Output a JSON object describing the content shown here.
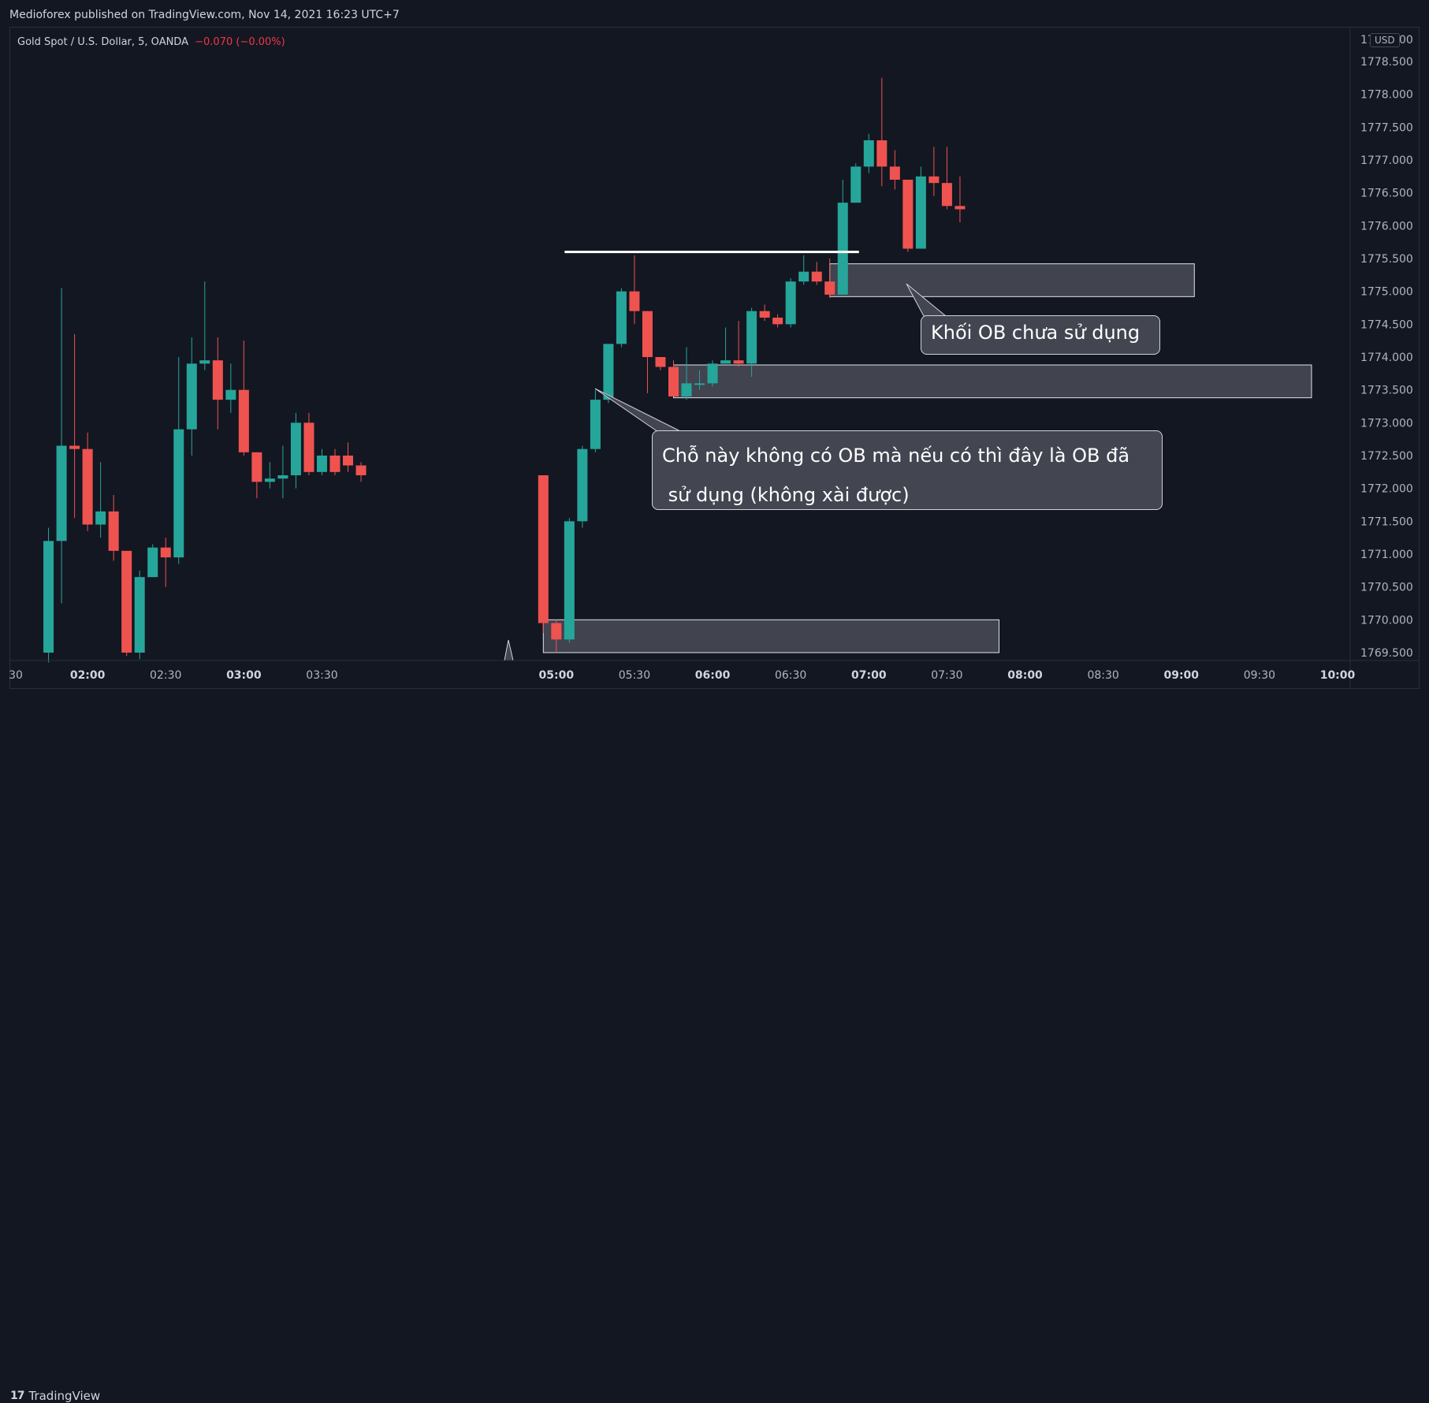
{
  "header": {
    "publisher": "Medioforex published on TradingView.com, Nov 14, 2021 16:23 UTC+7"
  },
  "symbol": {
    "name": "Gold Spot / U.S. Dollar, 5, OANDA",
    "change": "−0.070 (−0.00%)"
  },
  "price_axis": {
    "currency": "USD"
  },
  "annotations": {
    "callout_unused_ob": "Khối OB chưa sử dụng",
    "callout_used_ob_line1": "Chỗ này không có OB mà nếu có thì đây là OB đã",
    "callout_used_ob_line2": " sử dụng (không xài được)"
  },
  "footer": {
    "logo_text": "TradingView",
    "logo_icon": "tradingview-logo-icon"
  },
  "colors": {
    "background": "#131722",
    "up": "#26a69a",
    "down": "#ef5350",
    "grid": "#2a2e39",
    "text": "#d1d4dc",
    "zone_fill": "#434651"
  },
  "chart_data": {
    "type": "candlestick",
    "interval": "5",
    "ylim": [
      1769.35,
      1778.95
    ],
    "y_ticks": [
      1769.5,
      1770.0,
      1770.5,
      1771.0,
      1771.5,
      1772.0,
      1772.5,
      1773.0,
      1773.5,
      1774.0,
      1774.5,
      1775.0,
      1775.5,
      1776.0,
      1776.5,
      1777.0,
      1777.5,
      1778.0,
      1778.5
    ],
    "y_tick_labels": [
      "1769.500",
      "1770.000",
      "1770.500",
      "1771.000",
      "1771.500",
      "1772.000",
      "1772.500",
      "1773.000",
      "1773.500",
      "1774.000",
      "1774.500",
      "1775.000",
      "1775.500",
      "1776.000",
      "1776.500",
      "1777.000",
      "1777.500",
      "1778.000",
      "1778.500"
    ],
    "top_tick_label": "1779.000",
    "x_start": "01:30",
    "x_end": "10:00",
    "x_ticks": [
      {
        "t": "01:30",
        "label": "30",
        "bold": false
      },
      {
        "t": "02:00",
        "label": "02:00",
        "bold": true
      },
      {
        "t": "02:30",
        "label": "02:30",
        "bold": false
      },
      {
        "t": "03:00",
        "label": "03:00",
        "bold": true
      },
      {
        "t": "03:30",
        "label": "03:30",
        "bold": false
      },
      {
        "t": "05:00",
        "label": "05:00",
        "bold": true
      },
      {
        "t": "05:30",
        "label": "05:30",
        "bold": false
      },
      {
        "t": "06:00",
        "label": "06:00",
        "bold": true
      },
      {
        "t": "06:30",
        "label": "06:30",
        "bold": false
      },
      {
        "t": "07:00",
        "label": "07:00",
        "bold": true
      },
      {
        "t": "07:30",
        "label": "07:30",
        "bold": false
      },
      {
        "t": "08:00",
        "label": "08:00",
        "bold": true
      },
      {
        "t": "08:30",
        "label": "08:30",
        "bold": false
      },
      {
        "t": "09:00",
        "label": "09:00",
        "bold": true
      },
      {
        "t": "09:30",
        "label": "09:30",
        "bold": false
      },
      {
        "t": "10:00",
        "label": "10:00",
        "bold": true
      }
    ],
    "candles": [
      {
        "t": "01:45",
        "o": 1769.5,
        "h": 1771.4,
        "l": 1769.35,
        "c": 1771.2
      },
      {
        "t": "01:50",
        "o": 1771.2,
        "h": 1775.05,
        "l": 1770.25,
        "c": 1772.65
      },
      {
        "t": "01:55",
        "o": 1772.65,
        "h": 1774.35,
        "l": 1771.55,
        "c": 1772.6
      },
      {
        "t": "02:00",
        "o": 1772.6,
        "h": 1772.85,
        "l": 1771.35,
        "c": 1771.45
      },
      {
        "t": "02:05",
        "o": 1771.45,
        "h": 1772.4,
        "l": 1771.25,
        "c": 1771.65
      },
      {
        "t": "02:10",
        "o": 1771.65,
        "h": 1771.9,
        "l": 1770.9,
        "c": 1771.05
      },
      {
        "t": "02:15",
        "o": 1771.05,
        "h": 1771.05,
        "l": 1769.45,
        "c": 1769.5
      },
      {
        "t": "02:20",
        "o": 1769.5,
        "h": 1770.75,
        "l": 1769.4,
        "c": 1770.65
      },
      {
        "t": "02:25",
        "o": 1770.65,
        "h": 1771.15,
        "l": 1770.65,
        "c": 1771.1
      },
      {
        "t": "02:30",
        "o": 1771.1,
        "h": 1771.25,
        "l": 1770.5,
        "c": 1770.95
      },
      {
        "t": "02:35",
        "o": 1770.95,
        "h": 1774.0,
        "l": 1770.85,
        "c": 1772.9
      },
      {
        "t": "02:40",
        "o": 1772.9,
        "h": 1774.3,
        "l": 1772.5,
        "c": 1773.9
      },
      {
        "t": "02:45",
        "o": 1773.9,
        "h": 1775.15,
        "l": 1773.8,
        "c": 1773.95
      },
      {
        "t": "02:50",
        "o": 1773.95,
        "h": 1774.3,
        "l": 1772.9,
        "c": 1773.35
      },
      {
        "t": "02:55",
        "o": 1773.35,
        "h": 1773.9,
        "l": 1773.15,
        "c": 1773.5
      },
      {
        "t": "03:00",
        "o": 1773.5,
        "h": 1774.25,
        "l": 1772.5,
        "c": 1772.55
      },
      {
        "t": "03:05",
        "o": 1772.55,
        "h": 1772.55,
        "l": 1771.85,
        "c": 1772.1
      },
      {
        "t": "03:10",
        "o": 1772.1,
        "h": 1772.4,
        "l": 1772.0,
        "c": 1772.15
      },
      {
        "t": "03:15",
        "o": 1772.15,
        "h": 1772.65,
        "l": 1771.85,
        "c": 1772.2
      },
      {
        "t": "03:20",
        "o": 1772.2,
        "h": 1773.15,
        "l": 1772.0,
        "c": 1773.0
      },
      {
        "t": "03:25",
        "o": 1773.0,
        "h": 1773.15,
        "l": 1772.2,
        "c": 1772.25
      },
      {
        "t": "03:30",
        "o": 1772.25,
        "h": 1772.6,
        "l": 1772.2,
        "c": 1772.5
      },
      {
        "t": "03:35",
        "o": 1772.5,
        "h": 1772.6,
        "l": 1772.2,
        "c": 1772.25
      },
      {
        "t": "03:40",
        "o": 1772.5,
        "h": 1772.7,
        "l": 1772.25,
        "c": 1772.35
      },
      {
        "t": "03:45",
        "o": 1772.35,
        "h": 1772.4,
        "l": 1772.1,
        "c": 1772.2
      },
      {
        "t": "04:55",
        "o": 1772.2,
        "h": 1772.2,
        "l": 1769.8,
        "c": 1769.95
      },
      {
        "t": "05:00",
        "o": 1769.95,
        "h": 1770.0,
        "l": 1769.5,
        "c": 1769.7
      },
      {
        "t": "05:05",
        "o": 1769.7,
        "h": 1771.55,
        "l": 1769.65,
        "c": 1771.5
      },
      {
        "t": "05:10",
        "o": 1771.5,
        "h": 1772.65,
        "l": 1771.4,
        "c": 1772.6
      },
      {
        "t": "05:15",
        "o": 1772.6,
        "h": 1773.5,
        "l": 1772.55,
        "c": 1773.35
      },
      {
        "t": "05:20",
        "o": 1773.35,
        "h": 1774.2,
        "l": 1773.3,
        "c": 1774.2
      },
      {
        "t": "05:25",
        "o": 1774.2,
        "h": 1775.05,
        "l": 1774.15,
        "c": 1775.0
      },
      {
        "t": "05:30",
        "o": 1775.0,
        "h": 1775.55,
        "l": 1774.5,
        "c": 1774.7
      },
      {
        "t": "05:35",
        "o": 1774.7,
        "h": 1774.7,
        "l": 1773.45,
        "c": 1774.0
      },
      {
        "t": "05:40",
        "o": 1774.0,
        "h": 1774.0,
        "l": 1773.8,
        "c": 1773.85
      },
      {
        "t": "05:45",
        "o": 1773.85,
        "h": 1773.95,
        "l": 1773.4,
        "c": 1773.4
      },
      {
        "t": "05:50",
        "o": 1773.4,
        "h": 1774.15,
        "l": 1773.35,
        "c": 1773.6
      },
      {
        "t": "05:55",
        "o": 1773.6,
        "h": 1773.8,
        "l": 1773.5,
        "c": 1773.6
      },
      {
        "t": "06:00",
        "o": 1773.6,
        "h": 1773.95,
        "l": 1773.55,
        "c": 1773.9
      },
      {
        "t": "06:05",
        "o": 1773.9,
        "h": 1774.45,
        "l": 1773.9,
        "c": 1773.95
      },
      {
        "t": "06:10",
        "o": 1773.95,
        "h": 1774.55,
        "l": 1773.85,
        "c": 1773.9
      },
      {
        "t": "06:15",
        "o": 1773.9,
        "h": 1774.75,
        "l": 1773.7,
        "c": 1774.7
      },
      {
        "t": "06:20",
        "o": 1774.7,
        "h": 1774.8,
        "l": 1774.55,
        "c": 1774.6
      },
      {
        "t": "06:25",
        "o": 1774.6,
        "h": 1774.65,
        "l": 1774.45,
        "c": 1774.5
      },
      {
        "t": "06:30",
        "o": 1774.5,
        "h": 1775.2,
        "l": 1774.45,
        "c": 1775.15
      },
      {
        "t": "06:35",
        "o": 1775.15,
        "h": 1775.55,
        "l": 1775.1,
        "c": 1775.3
      },
      {
        "t": "06:40",
        "o": 1775.3,
        "h": 1775.45,
        "l": 1775.1,
        "c": 1775.15
      },
      {
        "t": "06:45",
        "o": 1775.15,
        "h": 1775.5,
        "l": 1774.9,
        "c": 1774.95
      },
      {
        "t": "06:50",
        "o": 1774.95,
        "h": 1776.7,
        "l": 1774.95,
        "c": 1776.35
      },
      {
        "t": "06:55",
        "o": 1776.35,
        "h": 1776.95,
        "l": 1776.35,
        "c": 1776.9
      },
      {
        "t": "07:00",
        "o": 1776.9,
        "h": 1777.4,
        "l": 1776.8,
        "c": 1777.3
      },
      {
        "t": "07:05",
        "o": 1777.3,
        "h": 1778.25,
        "l": 1776.6,
        "c": 1776.9
      },
      {
        "t": "07:10",
        "o": 1776.9,
        "h": 1777.15,
        "l": 1776.55,
        "c": 1776.7
      },
      {
        "t": "07:15",
        "o": 1776.7,
        "h": 1776.7,
        "l": 1775.6,
        "c": 1775.65
      },
      {
        "t": "07:20",
        "o": 1775.65,
        "h": 1776.9,
        "l": 1775.65,
        "c": 1776.75
      },
      {
        "t": "07:25",
        "o": 1776.75,
        "h": 1777.2,
        "l": 1776.45,
        "c": 1776.65
      },
      {
        "t": "07:30",
        "o": 1776.65,
        "h": 1777.2,
        "l": 1776.25,
        "c": 1776.3
      },
      {
        "t": "07:35",
        "o": 1776.3,
        "h": 1776.75,
        "l": 1776.05,
        "c": 1776.25
      }
    ],
    "horizontal_line": {
      "price": 1775.6,
      "from": "05:05",
      "to": "06:55"
    },
    "zones": [
      {
        "name": "unused-ob",
        "from": "06:45",
        "to": "09:05",
        "top": 1775.42,
        "bottom": 1774.92
      },
      {
        "name": "used-ob",
        "from": "05:45",
        "to": "09:50",
        "top": 1773.88,
        "bottom": 1773.38
      },
      {
        "name": "lower-ob",
        "from": "04:55",
        "to": "07:50",
        "top": 1770.0,
        "bottom": 1769.5
      }
    ]
  }
}
